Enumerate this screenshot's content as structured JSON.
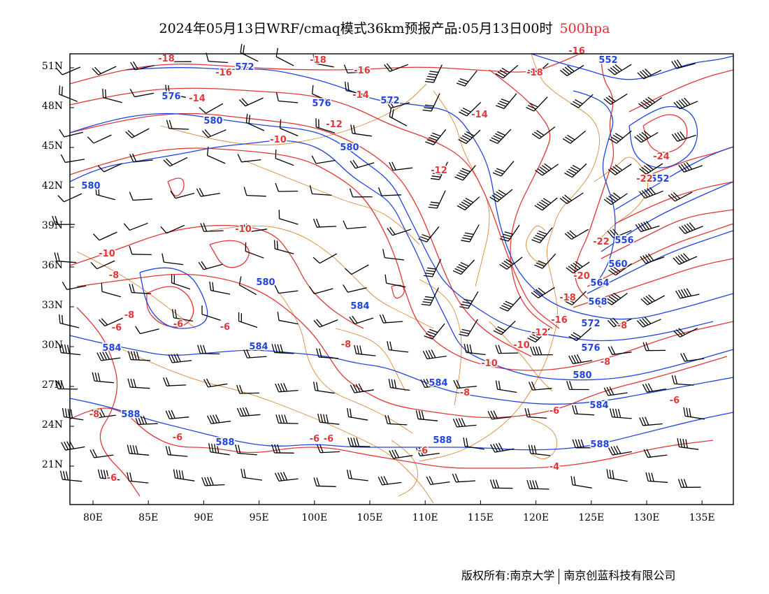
{
  "header": {
    "title": "2024年05月13日WRF/cmaq模式36km预报产品:05月13日00时",
    "level": "500hpa"
  },
  "axes": {
    "lat_ticks": [
      "51N",
      "48N",
      "45N",
      "42N",
      "39N",
      "36N",
      "33N",
      "30N",
      "27N",
      "24N",
      "21N"
    ],
    "lon_ticks": [
      "80E",
      "85E",
      "90E",
      "95E",
      "100E",
      "105E",
      "110E",
      "115E",
      "120E",
      "125E",
      "130E",
      "135E"
    ],
    "lat_range": [
      18,
      52
    ],
    "lon_range": [
      78,
      138
    ]
  },
  "colors": {
    "height_contour": "#2244dd",
    "temperature_contour": "#e03838",
    "coastline_border": "#d98a3c",
    "wind_barb": "#000000"
  },
  "layers": {
    "height_labels": [
      "552",
      "572",
      "576",
      "576",
      "572",
      "580",
      "580",
      "580",
      "584",
      "580",
      "584",
      "584",
      "588",
      "588",
      "588",
      "588",
      "584",
      "576",
      "572",
      "568",
      "564",
      "560",
      "556",
      "552",
      "584",
      "580"
    ],
    "temperature_labels": [
      "-18",
      "-16",
      "-18",
      "-16",
      "-14",
      "-14",
      "-12",
      "-14",
      "-18",
      "-16",
      "-10",
      "-12",
      "-24",
      "-22",
      "-10",
      "-10",
      "-8",
      "-8",
      "-6",
      "-6",
      "-6",
      "-8",
      "-8",
      "-6",
      "-6",
      "-6",
      "-6",
      "-8",
      "-6",
      "-6",
      "-22",
      "-20",
      "-18",
      "-16",
      "-12",
      "-10",
      "-10",
      "-8",
      "-8",
      "-6",
      "-4"
    ]
  },
  "footer": {
    "owner1": "版权所有:南京大学",
    "owner2": "南京创蓝科技有限公司"
  }
}
